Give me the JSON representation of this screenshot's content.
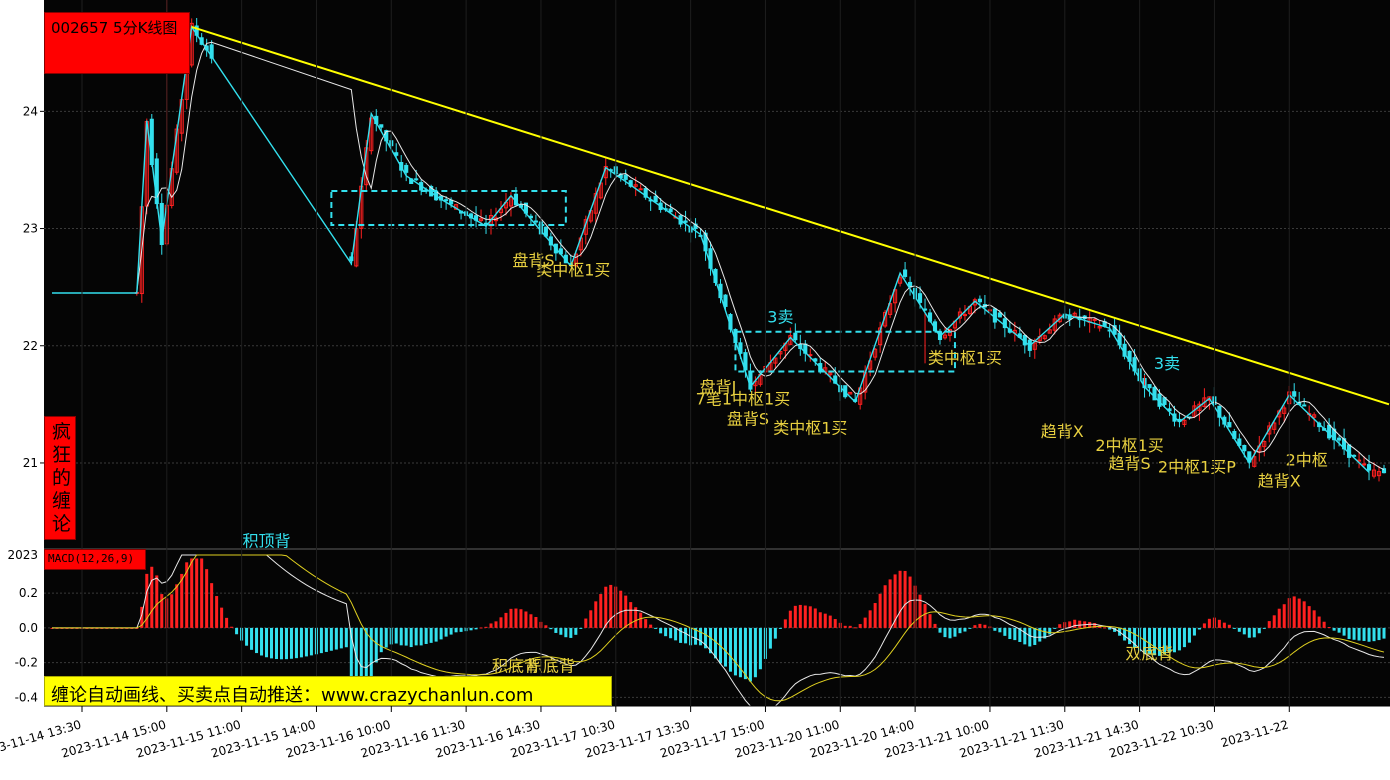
{
  "chart_title": "002657 5分K线图",
  "side_label": "疯狂的缠论",
  "macd_label": "MACD(12,26,9)",
  "promo_text": "缠论自动画线、买卖点自动推送：www.crazychanlun.com",
  "colors": {
    "background": "#050505",
    "up": "#ff2020",
    "down": "#33e0ee",
    "bi_line": "#33e0ee",
    "trend_line": "#ffff00",
    "annotation_yellow": "#e8d040",
    "annotation_cyan": "#33e0ee",
    "grid": "#3a3a3a"
  },
  "chart_data": [
    {
      "type": "candlestick",
      "name": "price",
      "title": "002657 5分K线图",
      "ylim": [
        20.3,
        24.95
      ],
      "yticks": [
        21,
        22,
        23,
        24
      ],
      "bi_points": [
        [
          0,
          22.45
        ],
        [
          17,
          22.45
        ],
        [
          19,
          23.92
        ],
        [
          22,
          22.9
        ],
        [
          28,
          24.72
        ],
        [
          60,
          22.7
        ],
        [
          64,
          23.98
        ],
        [
          71,
          23.45
        ],
        [
          78,
          23.25
        ],
        [
          87,
          23.02
        ],
        [
          92,
          23.28
        ],
        [
          104,
          22.68
        ],
        [
          111,
          23.52
        ],
        [
          130,
          22.95
        ],
        [
          140,
          21.65
        ],
        [
          148,
          22.07
        ],
        [
          161,
          21.52
        ],
        [
          170,
          22.62
        ],
        [
          178,
          22.08
        ],
        [
          185,
          22.38
        ],
        [
          196,
          22.0
        ],
        [
          203,
          22.27
        ],
        [
          212,
          22.15
        ],
        [
          219,
          21.65
        ],
        [
          226,
          21.35
        ],
        [
          232,
          21.55
        ],
        [
          240,
          21.0
        ],
        [
          248,
          21.58
        ],
        [
          264,
          20.92
        ]
      ],
      "trend_line": [
        [
          28,
          24.72
        ],
        [
          268,
          21.5
        ]
      ],
      "zhongshu": [
        {
          "x": [
            56,
            103
          ],
          "y": [
            23.03,
            23.32
          ]
        },
        {
          "x": [
            137,
            181
          ],
          "y": [
            21.78,
            22.12
          ]
        }
      ],
      "annotations": [
        {
          "text": "盘背S",
          "x": 96.5,
          "y": 22.68,
          "color": "yellow"
        },
        {
          "text": "类中枢1买",
          "x": 104.5,
          "y": 22.6,
          "color": "yellow"
        },
        {
          "text": "3卖",
          "x": 146,
          "y": 22.2,
          "color": "cyan"
        },
        {
          "text": "盘背J",
          "x": 133.5,
          "y": 21.6,
          "color": "yellow"
        },
        {
          "text": "7笔1中枢1买",
          "x": 138.5,
          "y": 21.5,
          "color": "yellow"
        },
        {
          "text": "盘背S",
          "x": 139.5,
          "y": 21.33,
          "color": "yellow"
        },
        {
          "text": "类中枢1买",
          "x": 152,
          "y": 21.25,
          "color": "yellow"
        },
        {
          "text": "类中枢1买",
          "x": 183,
          "y": 21.85,
          "color": "yellow"
        },
        {
          "text": "3卖",
          "x": 223.5,
          "y": 21.8,
          "color": "cyan"
        },
        {
          "text": "趋背X",
          "x": 202.5,
          "y": 21.22,
          "color": "yellow"
        },
        {
          "text": "2中枢1买",
          "x": 216,
          "y": 21.1,
          "color": "yellow"
        },
        {
          "text": "趋背S",
          "x": 216,
          "y": 20.95,
          "color": "yellow"
        },
        {
          "text": "2中枢1买P",
          "x": 229.5,
          "y": 20.92,
          "color": "yellow"
        },
        {
          "text": "2中枢",
          "x": 251.5,
          "y": 20.98,
          "color": "yellow"
        },
        {
          "text": "趋背X",
          "x": 246,
          "y": 20.8,
          "color": "yellow"
        }
      ]
    },
    {
      "type": "bar",
      "name": "MACD",
      "title": "MACD(12,26,9)",
      "ylim": [
        -0.45,
        0.42
      ],
      "yticks": [
        -0.4,
        -0.2,
        0.0,
        0.2
      ],
      "ytick_labels": [
        "-0.4",
        "-0.2",
        "0.0",
        "0.2"
      ],
      "top_value_label": "2023",
      "annotations": [
        {
          "text": "积顶背",
          "x": 43,
          "y": 0.47,
          "color": "cyan"
        },
        {
          "text": "积底背",
          "x": 93,
          "y": -0.25,
          "color": "yellow"
        },
        {
          "text": "积底背",
          "x": 100,
          "y": -0.25,
          "color": "yellow"
        },
        {
          "text": "双底背",
          "x": 220,
          "y": -0.18,
          "color": "yellow"
        }
      ]
    }
  ],
  "x_axis": {
    "n_bars": 268,
    "labels": [
      {
        "i": 0,
        "text": "2023-11-14 13:30"
      },
      {
        "i": 17,
        "text": "2023-11-14 15:00"
      },
      {
        "i": 32,
        "text": "2023-11-15 11:00"
      },
      {
        "i": 47,
        "text": "2023-11-15 14:00"
      },
      {
        "i": 62,
        "text": "2023-11-16 10:00"
      },
      {
        "i": 77,
        "text": "2023-11-16 11:30"
      },
      {
        "i": 92,
        "text": "2023-11-16 14:30"
      },
      {
        "i": 107,
        "text": "2023-11-17 10:30"
      },
      {
        "i": 122,
        "text": "2023-11-17 13:30"
      },
      {
        "i": 137,
        "text": "2023-11-17 15:00"
      },
      {
        "i": 152,
        "text": "2023-11-20 11:00"
      },
      {
        "i": 167,
        "text": "2023-11-20 14:00"
      },
      {
        "i": 182,
        "text": "2023-11-21 10:00"
      },
      {
        "i": 197,
        "text": "2023-11-21 11:30"
      },
      {
        "i": 212,
        "text": "2023-11-21 14:30"
      },
      {
        "i": 227,
        "text": "2023-11-22 10:30"
      },
      {
        "i": 242,
        "text": "2023-11-22"
      }
    ]
  }
}
